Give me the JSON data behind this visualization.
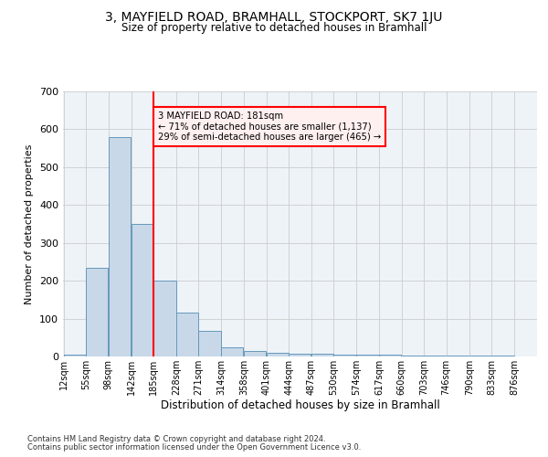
{
  "title": "3, MAYFIELD ROAD, BRAMHALL, STOCKPORT, SK7 1JU",
  "subtitle": "Size of property relative to detached houses in Bramhall",
  "xlabel": "Distribution of detached houses by size in Bramhall",
  "ylabel": "Number of detached properties",
  "bar_values": [
    5,
    235,
    580,
    350,
    200,
    115,
    68,
    25,
    15,
    10,
    8,
    7,
    5,
    5,
    5,
    3,
    3,
    3,
    2,
    2,
    1
  ],
  "bin_labels": [
    "12sqm",
    "55sqm",
    "98sqm",
    "142sqm",
    "185sqm",
    "228sqm",
    "271sqm",
    "314sqm",
    "358sqm",
    "401sqm",
    "444sqm",
    "487sqm",
    "530sqm",
    "574sqm",
    "617sqm",
    "660sqm",
    "703sqm",
    "746sqm",
    "790sqm",
    "833sqm",
    "876sqm"
  ],
  "bin_edges": [
    12,
    55,
    98,
    142,
    185,
    228,
    271,
    314,
    358,
    401,
    444,
    487,
    530,
    574,
    617,
    660,
    703,
    746,
    790,
    833,
    876,
    919
  ],
  "bar_color": "#c8d8e8",
  "bar_edge_color": "#6699bb",
  "property_line_x": 185,
  "annotation_title": "3 MAYFIELD ROAD: 181sqm",
  "annotation_line1": "← 71% of detached houses are smaller (1,137)",
  "annotation_line2": "29% of semi-detached houses are larger (465) →",
  "annotation_box_facecolor": "#fff0f0",
  "annotation_edge_color": "red",
  "grid_color": "#cccccc",
  "bg_color": "#eef3f8",
  "footer_line1": "Contains HM Land Registry data © Crown copyright and database right 2024.",
  "footer_line2": "Contains public sector information licensed under the Open Government Licence v3.0.",
  "ylim": [
    0,
    700
  ],
  "yticks": [
    0,
    100,
    200,
    300,
    400,
    500,
    600,
    700
  ]
}
